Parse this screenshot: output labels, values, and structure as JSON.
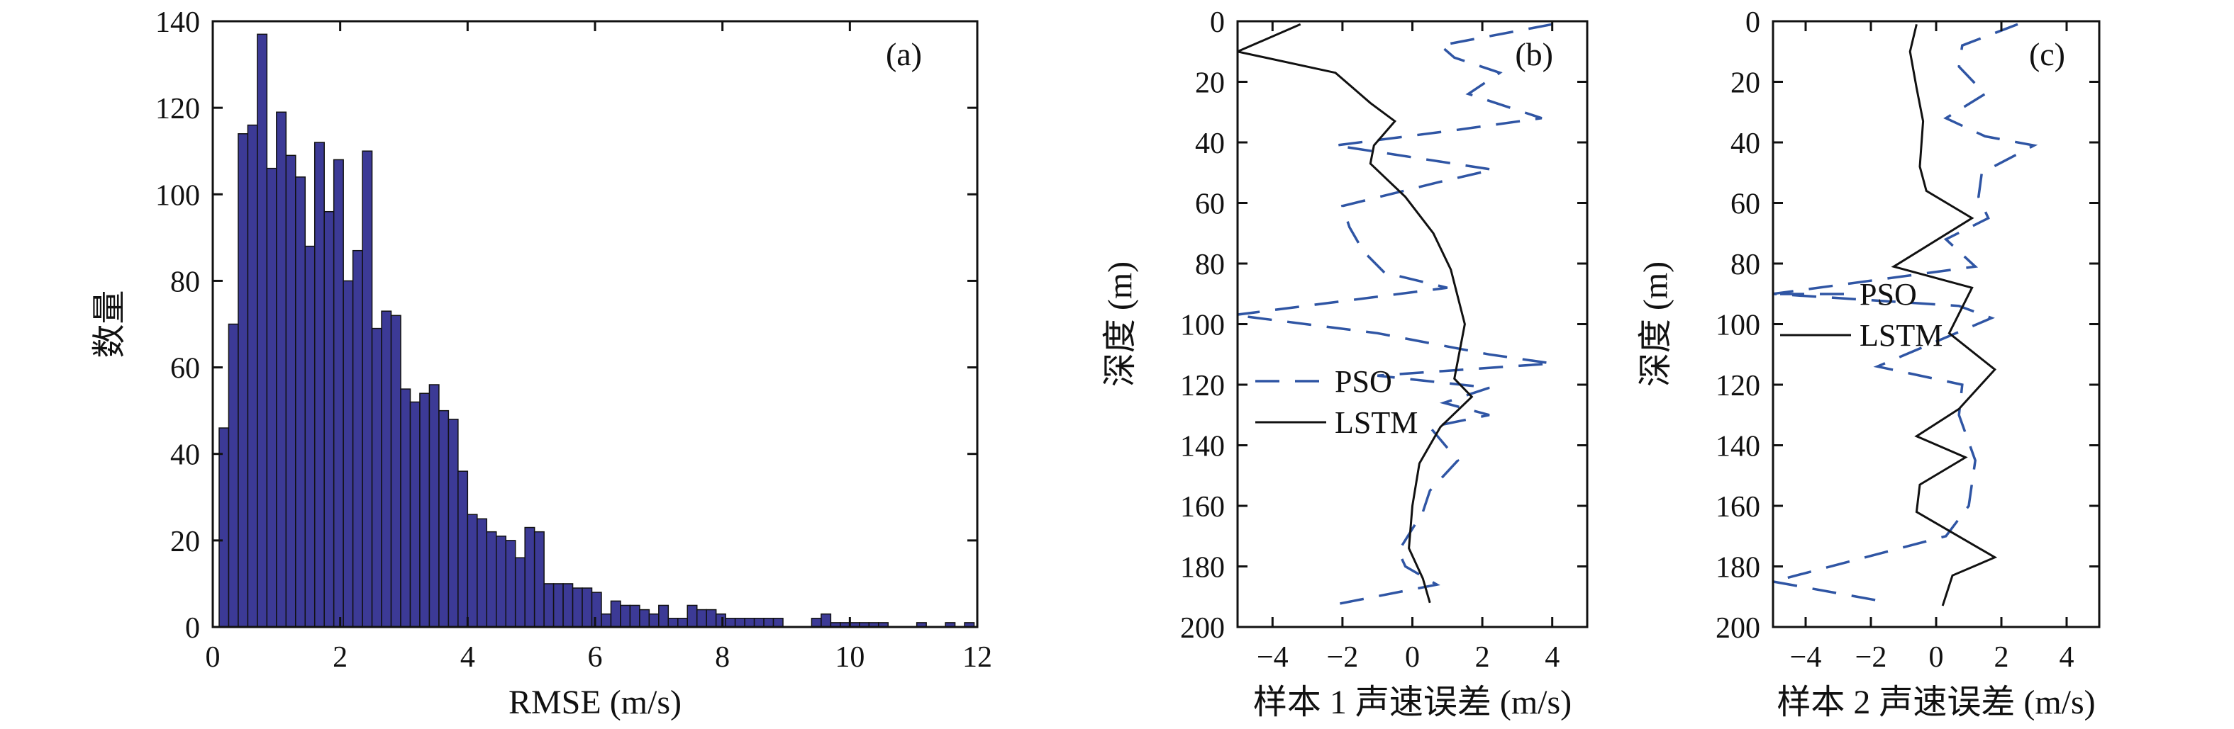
{
  "chart_data": [
    {
      "panel": "(a)",
      "type": "bar",
      "xlabel": "RMSE (m/s)",
      "ylabel": "数量",
      "xlim": [
        0,
        12
      ],
      "ylim": [
        0,
        140
      ],
      "xticks": [
        0,
        2,
        4,
        6,
        8,
        10,
        12
      ],
      "yticks": [
        0,
        20,
        40,
        60,
        80,
        100,
        120,
        140
      ],
      "bin_width": 0.15,
      "bin_start": 0.1,
      "bar_color": "#3c3a96",
      "values": [
        46,
        70,
        114,
        116,
        137,
        106,
        119,
        109,
        104,
        88,
        112,
        96,
        108,
        80,
        87,
        110,
        69,
        73,
        72,
        55,
        52,
        54,
        56,
        50,
        48,
        36,
        26,
        25,
        22,
        21,
        20,
        16,
        23,
        22,
        10,
        10,
        10,
        9,
        9,
        8,
        3,
        6,
        5,
        5,
        4,
        3,
        5,
        2,
        2,
        5,
        4,
        4,
        3,
        2,
        2,
        2,
        2,
        2,
        2,
        0,
        0,
        0,
        2,
        3,
        1,
        1,
        1,
        1,
        1,
        1,
        0,
        0,
        0,
        1,
        0,
        0,
        1,
        0,
        1,
        0,
        0,
        0,
        0,
        0,
        0,
        0,
        0,
        0,
        0,
        0,
        0,
        0,
        0,
        0,
        0,
        0,
        0,
        0,
        0,
        0,
        0,
        0,
        0,
        0,
        0,
        0,
        0,
        0,
        0,
        0,
        0,
        0,
        0,
        0,
        0,
        0,
        0,
        0,
        0
      ]
    },
    {
      "panel": "(b)",
      "type": "line",
      "xlabel": "样本 1 声速误差 (m/s)",
      "ylabel": "深度 (m)",
      "xlim": [
        -5,
        5
      ],
      "ylim": [
        0,
        200
      ],
      "y_inverted": true,
      "xticks": [
        -4,
        -2,
        0,
        2,
        4
      ],
      "yticks": [
        0,
        20,
        40,
        60,
        80,
        100,
        120,
        140,
        160,
        180,
        200
      ],
      "legend": [
        "PSO",
        "LSTM"
      ],
      "series": [
        {
          "name": "PSO",
          "style": "dashed",
          "color": "#2f55a4",
          "points": [
            [
              4,
              1
            ],
            [
              0.8,
              8
            ],
            [
              1.2,
              12
            ],
            [
              2.5,
              17
            ],
            [
              1.6,
              24
            ],
            [
              3.7,
              32
            ],
            [
              1.2,
              36
            ],
            [
              -2.2,
              41
            ],
            [
              2.3,
              49
            ],
            [
              0.8,
              53
            ],
            [
              -2,
              61
            ],
            [
              -1.8,
              68
            ],
            [
              -1.4,
              76
            ],
            [
              -0.8,
              83
            ],
            [
              1,
              88
            ],
            [
              -5.1,
              97
            ],
            [
              -1,
              103
            ],
            [
              2.2,
              110
            ],
            [
              4,
              113
            ],
            [
              -1,
              117
            ],
            [
              2.2,
              121
            ],
            [
              0.9,
              126
            ],
            [
              2.2,
              130
            ],
            [
              0.5,
              134
            ],
            [
              1.3,
              145
            ],
            [
              0.5,
              155
            ],
            [
              0.3,
              162
            ],
            [
              -0.4,
              175
            ],
            [
              -0.2,
              180
            ],
            [
              0.7,
              186
            ],
            [
              -2.4,
              193
            ]
          ]
        },
        {
          "name": "LSTM",
          "style": "solid",
          "color": "#111111",
          "points": [
            [
              -3.2,
              1
            ],
            [
              -5,
              10
            ],
            [
              -2.2,
              17
            ],
            [
              -1.2,
              27
            ],
            [
              -0.5,
              33
            ],
            [
              -1.1,
              41
            ],
            [
              -1.2,
              47
            ],
            [
              -0.2,
              58
            ],
            [
              0.6,
              70
            ],
            [
              1.1,
              82
            ],
            [
              1.5,
              100
            ],
            [
              1.2,
              118
            ],
            [
              1.7,
              124
            ],
            [
              0.8,
              134
            ],
            [
              0.2,
              146
            ],
            [
              0,
              160
            ],
            [
              -0.1,
              174
            ],
            [
              0.3,
              184
            ],
            [
              0.5,
              192
            ]
          ]
        }
      ]
    },
    {
      "panel": "(c)",
      "type": "line",
      "xlabel": "样本 2 声速误差 (m/s)",
      "ylabel": "深度 (m)",
      "xlim": [
        -5,
        5
      ],
      "ylim": [
        0,
        200
      ],
      "y_inverted": true,
      "xticks": [
        -4,
        -2,
        0,
        2,
        4
      ],
      "yticks": [
        0,
        20,
        40,
        60,
        80,
        100,
        120,
        140,
        160,
        180,
        200
      ],
      "legend": [
        "PSO",
        "LSTM"
      ],
      "series": [
        {
          "name": "PSO",
          "style": "dashed",
          "color": "#2f55a4",
          "points": [
            [
              2.5,
              1
            ],
            [
              0.8,
              8
            ],
            [
              0.7,
              15
            ],
            [
              1.5,
              24
            ],
            [
              0.3,
              32
            ],
            [
              1.5,
              38
            ],
            [
              3,
              41
            ],
            [
              1.4,
              50
            ],
            [
              1.3,
              58
            ],
            [
              1.6,
              65
            ],
            [
              0.3,
              72
            ],
            [
              1.2,
              81
            ],
            [
              -5,
              90
            ],
            [
              0.7,
              94
            ],
            [
              1.7,
              98
            ],
            [
              -1.8,
              114
            ],
            [
              0.8,
              120
            ],
            [
              0.7,
              130
            ],
            [
              1.2,
              145
            ],
            [
              1,
              160
            ],
            [
              0.3,
              170
            ],
            [
              -5,
              185
            ],
            [
              -1.4,
              192
            ]
          ]
        },
        {
          "name": "LSTM",
          "style": "solid",
          "color": "#111111",
          "points": [
            [
              -0.6,
              1
            ],
            [
              -0.8,
              10
            ],
            [
              -0.6,
              22
            ],
            [
              -0.4,
              33
            ],
            [
              -0.5,
              48
            ],
            [
              -0.3,
              56
            ],
            [
              1.1,
              65
            ],
            [
              -1.3,
              81
            ],
            [
              1.1,
              88
            ],
            [
              0.4,
              103
            ],
            [
              1.8,
              115
            ],
            [
              0.7,
              128
            ],
            [
              -0.6,
              137
            ],
            [
              0.9,
              144
            ],
            [
              -0.5,
              153
            ],
            [
              -0.6,
              162
            ],
            [
              1.8,
              177
            ],
            [
              0.5,
              183
            ],
            [
              0.2,
              193
            ]
          ]
        }
      ]
    }
  ]
}
